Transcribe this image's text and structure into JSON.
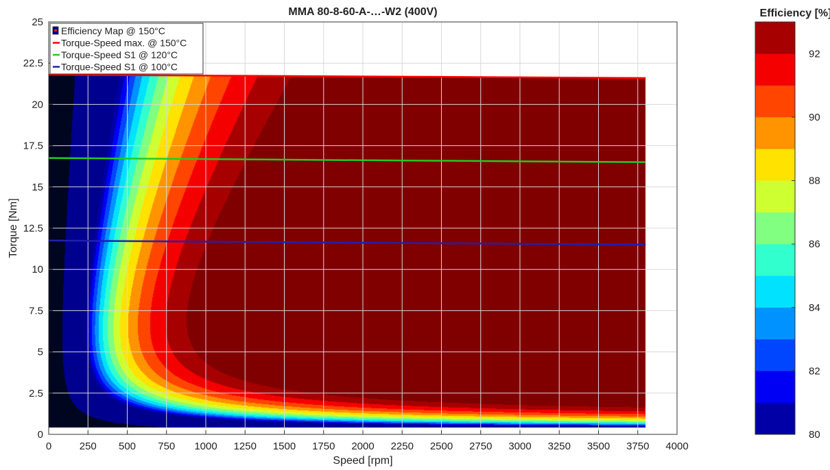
{
  "chart_data": {
    "type": "heatmap",
    "title": "MMA 80-8-60-A-…-W2 (400V)",
    "xlabel": "Speed [rpm]",
    "ylabel": "Torque [Nm]",
    "xlim": [
      0,
      4000
    ],
    "ylim": [
      0,
      25
    ],
    "xticks": [
      0,
      250,
      500,
      750,
      1000,
      1250,
      1500,
      1750,
      2000,
      2250,
      2500,
      2750,
      3000,
      3250,
      3500,
      3750,
      4000
    ],
    "yticks": [
      0,
      2.5,
      5,
      7.5,
      10,
      12.5,
      15,
      17.5,
      20,
      22.5,
      25
    ],
    "ytick_labels": [
      "0",
      "2.5",
      "5",
      "7.5",
      "10",
      "12.5",
      "15",
      "17.5",
      "20",
      "22.5",
      "25"
    ],
    "grid": true,
    "legend_position": "top-left",
    "map_extent": {
      "speed_max": 3800,
      "torque_min": 0.4
    },
    "efficiency_levels": [
      80,
      81,
      82,
      83,
      84,
      85,
      86,
      87,
      88,
      89,
      90,
      91,
      92
    ],
    "series": [
      {
        "name": "Efficiency Map @ 150°C",
        "kind": "filled-contour",
        "color": "#00008f"
      },
      {
        "name": "Torque-Speed max. @ 150°C",
        "kind": "line",
        "color": "#ff0000",
        "x": [
          0,
          3800
        ],
        "y": [
          21.8,
          21.6
        ]
      },
      {
        "name": "Torque-Speed S1 @ 120°C",
        "kind": "line",
        "color": "#22cc22",
        "x": [
          0,
          3800
        ],
        "y": [
          16.75,
          16.5
        ]
      },
      {
        "name": "Torque-Speed S1 @ 100°C",
        "kind": "line",
        "color": "#2020b0",
        "x": [
          0,
          3800
        ],
        "y": [
          11.75,
          11.5
        ]
      }
    ],
    "colorbar": {
      "title": "Efficiency [%]",
      "range": [
        80,
        93
      ],
      "ticks": [
        80,
        82,
        84,
        86,
        88,
        90,
        92
      ]
    }
  }
}
